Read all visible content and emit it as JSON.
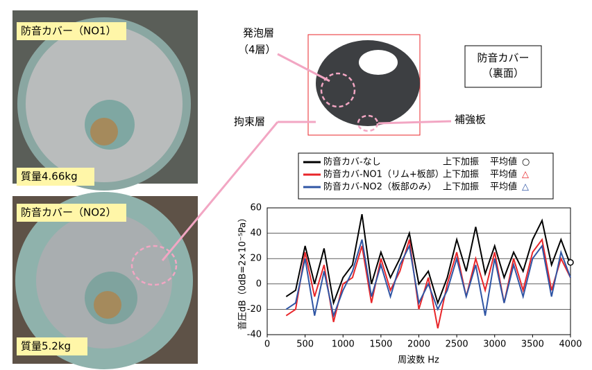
{
  "photos": [
    {
      "label": "防音カバー（NO1）",
      "mass": "質量4.66kg"
    },
    {
      "label": "防音カバー（NO2）",
      "mass": "質量5.2kg"
    }
  ],
  "annotations": {
    "foam": "発泡層",
    "foam_layers": "（4層）",
    "cover": "防音カバー",
    "back": "（裏面）",
    "constraint": "拘束層",
    "reinforce": "補強板"
  },
  "chart_data": {
    "type": "line",
    "xlabel": "周波数 Hz",
    "ylabel": "音圧dB（0dB=2×10⁻⁵Pa）",
    "x": [
      250,
      375,
      500,
      625,
      750,
      875,
      1000,
      1125,
      1250,
      1375,
      1500,
      1625,
      1750,
      1875,
      2000,
      2125,
      2250,
      2375,
      2500,
      2625,
      2750,
      2875,
      3000,
      3125,
      3250,
      3375,
      3500,
      3625,
      3750,
      3875,
      4000
    ],
    "series": [
      {
        "name": "防音カバ-なし",
        "excitation": "上下加振",
        "average_label": "平均値",
        "marker": "○",
        "color": "#000000",
        "average": 17,
        "values": [
          -10,
          -5,
          30,
          0,
          28,
          -15,
          5,
          15,
          55,
          0,
          25,
          5,
          20,
          40,
          0,
          10,
          -15,
          5,
          35,
          10,
          45,
          8,
          30,
          5,
          25,
          10,
          35,
          50,
          15,
          35,
          15
        ]
      },
      {
        "name": "防音カバ-NO1（リム+板部）",
        "excitation": "上下加振",
        "average_label": "平均値",
        "marker": "△",
        "color": "#e8262a",
        "values": [
          -25,
          -20,
          25,
          -10,
          15,
          -30,
          0,
          5,
          30,
          -15,
          20,
          -5,
          10,
          35,
          -20,
          5,
          -35,
          0,
          25,
          -10,
          20,
          -5,
          25,
          -15,
          20,
          -5,
          25,
          35,
          -5,
          20,
          5
        ]
      },
      {
        "name": "防音カバ-NO2（板部のみ）",
        "excitation": "上下加振",
        "average_label": "平均値",
        "marker": "△",
        "color": "#2f55a4",
        "values": [
          -20,
          -15,
          20,
          -25,
          10,
          -25,
          -5,
          10,
          35,
          -10,
          15,
          -10,
          15,
          30,
          -15,
          0,
          -20,
          -5,
          20,
          -10,
          15,
          -25,
          20,
          -15,
          15,
          -10,
          20,
          30,
          -10,
          25,
          5
        ]
      }
    ],
    "xlim": [
      0,
      4000
    ],
    "xticks": [
      0,
      500,
      1000,
      1500,
      2000,
      2500,
      3000,
      3500,
      4000
    ],
    "ylim": [
      -40,
      60
    ],
    "yticks": [
      -40,
      -20,
      0,
      20,
      40,
      60
    ],
    "grid": true
  }
}
